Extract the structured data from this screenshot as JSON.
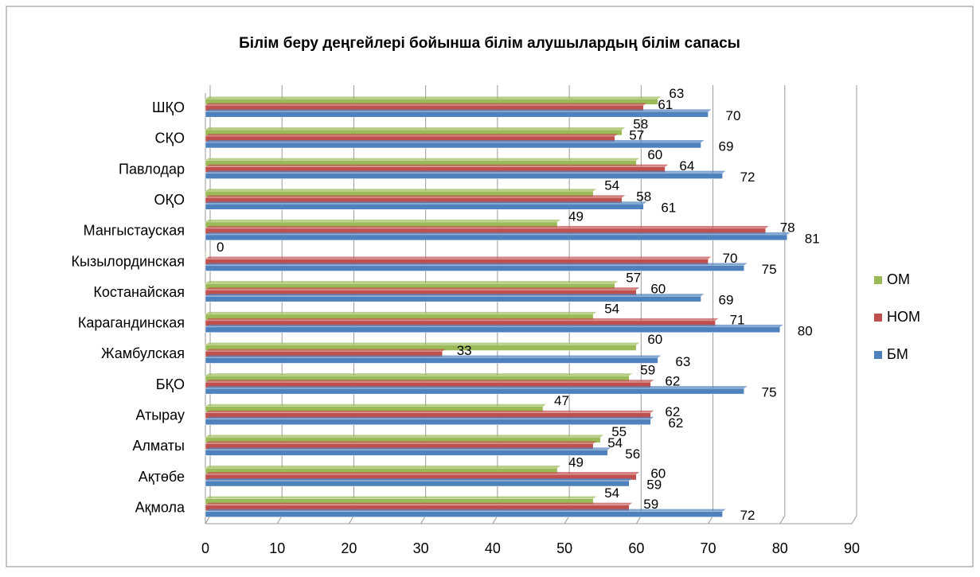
{
  "chart_data": {
    "type": "bar",
    "orientation": "horizontal",
    "title": "Білім беру деңгейлері бойынша білім алушылардың білім сапасы",
    "categories": [
      "Ақмола",
      "Ақтөбе",
      "Алматы",
      "Атырау",
      "БҚО",
      "Жамбулская",
      "Карагандинская",
      "Костанайская",
      "Кызылординская",
      "Мангыстауская",
      "ОҚО",
      "Павлодар",
      "СҚО",
      "ШҚО"
    ],
    "series": [
      {
        "name": "ОМ",
        "color": "#9bbb59",
        "values": [
          54,
          49,
          55,
          47,
          59,
          60,
          54,
          57,
          0,
          49,
          54,
          60,
          58,
          63
        ]
      },
      {
        "name": "НОМ",
        "color": "#c0504d",
        "values": [
          59,
          60,
          54,
          62,
          62,
          33,
          71,
          60,
          70,
          78,
          58,
          64,
          57,
          61
        ]
      },
      {
        "name": "БМ",
        "color": "#4f81bd",
        "values": [
          72,
          59,
          56,
          62,
          75,
          63,
          80,
          69,
          75,
          81,
          61,
          72,
          69,
          70
        ]
      }
    ],
    "xlim": [
      0,
      90
    ],
    "xticks": [
      0,
      10,
      20,
      30,
      40,
      50,
      60,
      70,
      80,
      90
    ],
    "grid": true,
    "legend": "right"
  }
}
